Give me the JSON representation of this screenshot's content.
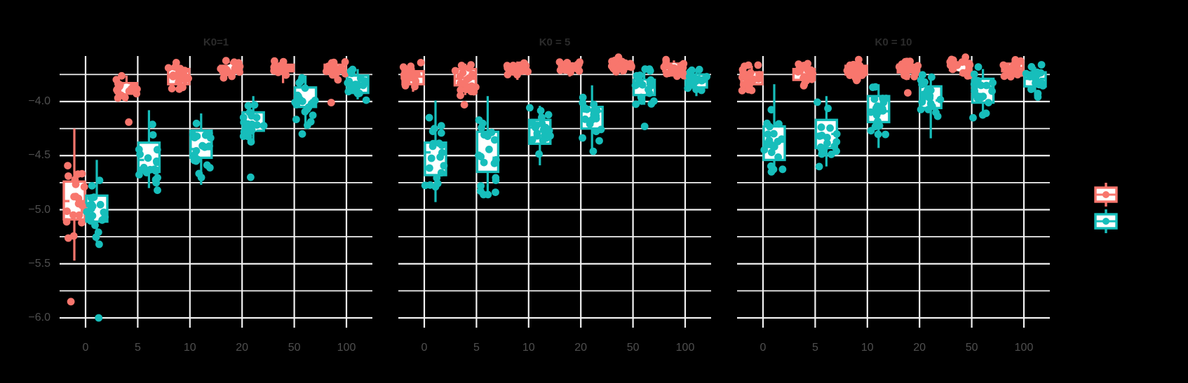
{
  "figure": {
    "background": "#000000",
    "grid_color": "#f2f2f2",
    "axis_text_color": "#4f4f4f",
    "strip_text_color": "#2b2b2b",
    "box_fill": "#ffffff"
  },
  "series": [
    {
      "key": "salmon",
      "color": "#F8766D"
    },
    {
      "key": "teal",
      "color": "#17BEBB"
    }
  ],
  "axes": {
    "x_ticks": [
      "0",
      "5",
      "10",
      "20",
      "50",
      "100"
    ],
    "y_ticks": [
      "−4.0",
      "−4.5",
      "−5.0",
      "−5.5",
      "−6.0"
    ],
    "y_tick_values": [
      -4.0,
      -4.5,
      -5.0,
      -5.5,
      -6.0
    ],
    "y_minor_values": [
      -3.75,
      -4.25,
      -4.75,
      -5.25,
      -5.75
    ]
  },
  "legend": {
    "position": "right",
    "items": [
      {
        "series": "salmon",
        "color": "#F8766D",
        "label": ""
      },
      {
        "series": "teal",
        "color": "#17BEBB",
        "label": ""
      }
    ]
  },
  "chart_data": {
    "type": "boxplot",
    "subtype": "grouped notched boxplots with jittered points, faceted",
    "xlabel": "",
    "ylabel": "",
    "ylim": [
      -6.09,
      -3.58
    ],
    "grid": true,
    "points_per_box": 20,
    "stats_order": [
      "whisker_low",
      "q1",
      "median",
      "q3",
      "whisker_high"
    ],
    "facets": [
      {
        "title": "K0=1",
        "groups": [
          {
            "x": "0",
            "salmon": {
              "stats": [
                -5.47,
                -5.09,
                -4.92,
                -4.74,
                -4.25
              ],
              "outliers": [
                -5.85
              ]
            },
            "teal": {
              "stats": [
                -5.3,
                -5.11,
                -5.01,
                -4.87,
                -4.54
              ],
              "outliers": [
                -6.0
              ]
            }
          },
          {
            "x": "5",
            "salmon": {
              "stats": [
                -4.0,
                -3.92,
                -3.88,
                -3.83,
                -3.76
              ],
              "outliers": [
                -4.19
              ]
            },
            "teal": {
              "stats": [
                -4.8,
                -4.65,
                -4.54,
                -4.38,
                -4.08
              ],
              "outliers": []
            }
          },
          {
            "x": "10",
            "salmon": {
              "stats": [
                -3.89,
                -3.84,
                -3.76,
                -3.7,
                -3.66
              ],
              "outliers": []
            },
            "teal": {
              "stats": [
                -4.77,
                -4.52,
                -4.44,
                -4.27,
                -4.11
              ],
              "outliers": []
            }
          },
          {
            "x": "20",
            "salmon": {
              "stats": [
                -3.79,
                -3.73,
                -3.7,
                -3.67,
                -3.63
              ],
              "outliers": []
            },
            "teal": {
              "stats": [
                -4.38,
                -4.27,
                -4.23,
                -4.1,
                -3.95
              ],
              "outliers": [
                -4.7
              ]
            }
          },
          {
            "x": "50",
            "salmon": {
              "stats": [
                -3.83,
                -3.72,
                -3.69,
                -3.66,
                -3.62
              ],
              "outliers": []
            },
            "teal": {
              "stats": [
                -4.25,
                -4.05,
                -3.99,
                -3.87,
                -3.76
              ],
              "outliers": [
                -4.3
              ]
            }
          },
          {
            "x": "100",
            "salmon": {
              "stats": [
                -3.8,
                -3.73,
                -3.7,
                -3.66,
                -3.62
              ],
              "outliers": [
                -4.01
              ]
            },
            "teal": {
              "stats": [
                -3.98,
                -3.92,
                -3.84,
                -3.76,
                -3.7
              ],
              "outliers": []
            }
          }
        ]
      },
      {
        "title": "K0 = 5",
        "groups": [
          {
            "x": "0",
            "salmon": {
              "stats": [
                -3.91,
                -3.84,
                -3.77,
                -3.72,
                -3.66
              ],
              "outliers": []
            },
            "teal": {
              "stats": [
                -4.93,
                -4.68,
                -4.47,
                -4.38,
                -3.99
              ],
              "outliers": []
            }
          },
          {
            "x": "5",
            "salmon": {
              "stats": [
                -3.94,
                -3.85,
                -3.79,
                -3.7,
                -3.65
              ],
              "outliers": [
                -4.03
              ]
            },
            "teal": {
              "stats": [
                -4.84,
                -4.65,
                -4.52,
                -4.28,
                -3.95
              ],
              "outliers": []
            }
          },
          {
            "x": "10",
            "salmon": {
              "stats": [
                -3.8,
                -3.74,
                -3.71,
                -3.67,
                -3.63
              ],
              "outliers": []
            },
            "teal": {
              "stats": [
                -4.59,
                -4.39,
                -4.24,
                -4.17,
                -4.04
              ],
              "outliers": []
            }
          },
          {
            "x": "20",
            "salmon": {
              "stats": [
                -3.77,
                -3.71,
                -3.68,
                -3.65,
                -3.62
              ],
              "outliers": []
            },
            "teal": {
              "stats": [
                -4.44,
                -4.25,
                -4.09,
                -4.05,
                -3.85
              ],
              "outliers": [
                -4.46
              ]
            }
          },
          {
            "x": "50",
            "salmon": {
              "stats": [
                -3.75,
                -3.7,
                -3.67,
                -3.64,
                -3.61
              ],
              "outliers": []
            },
            "teal": {
              "stats": [
                -4.03,
                -3.94,
                -3.85,
                -3.8,
                -3.72
              ],
              "outliers": [
                -4.23
              ]
            }
          },
          {
            "x": "100",
            "salmon": {
              "stats": [
                -3.76,
                -3.72,
                -3.69,
                -3.65,
                -3.62
              ],
              "outliers": []
            },
            "teal": {
              "stats": [
                -3.95,
                -3.87,
                -3.8,
                -3.75,
                -3.7
              ],
              "outliers": []
            }
          }
        ]
      },
      {
        "title": "K0 = 10",
        "groups": [
          {
            "x": "0",
            "salmon": {
              "stats": [
                -3.91,
                -3.84,
                -3.77,
                -3.73,
                -3.67
              ],
              "outliers": []
            },
            "teal": {
              "stats": [
                -4.63,
                -4.54,
                -4.37,
                -4.23,
                -3.84
              ],
              "outliers": []
            }
          },
          {
            "x": "5",
            "salmon": {
              "stats": [
                -3.88,
                -3.8,
                -3.74,
                -3.7,
                -3.65
              ],
              "outliers": []
            },
            "teal": {
              "stats": [
                -4.6,
                -4.43,
                -4.3,
                -4.17,
                -3.95
              ],
              "outliers": []
            }
          },
          {
            "x": "10",
            "salmon": {
              "stats": [
                -3.82,
                -3.75,
                -3.71,
                -3.67,
                -3.63
              ],
              "outliers": []
            },
            "teal": {
              "stats": [
                -4.43,
                -4.19,
                -4.09,
                -3.95,
                -3.84
              ],
              "outliers": []
            }
          },
          {
            "x": "20",
            "salmon": {
              "stats": [
                -3.8,
                -3.73,
                -3.69,
                -3.66,
                -3.62
              ],
              "outliers": [
                -3.92
              ]
            },
            "teal": {
              "stats": [
                -4.34,
                -4.06,
                -3.99,
                -3.86,
                -3.75
              ],
              "outliers": []
            }
          },
          {
            "x": "50",
            "salmon": {
              "stats": [
                -3.76,
                -3.71,
                -3.68,
                -3.64,
                -3.61
              ],
              "outliers": []
            },
            "teal": {
              "stats": [
                -4.13,
                -4.01,
                -3.87,
                -3.79,
                -3.7
              ],
              "outliers": []
            }
          },
          {
            "x": "100",
            "salmon": {
              "stats": [
                -3.77,
                -3.72,
                -3.69,
                -3.65,
                -3.61
              ],
              "outliers": []
            },
            "teal": {
              "stats": [
                -3.95,
                -3.86,
                -3.79,
                -3.73,
                -3.68
              ],
              "outliers": []
            }
          }
        ]
      }
    ]
  }
}
